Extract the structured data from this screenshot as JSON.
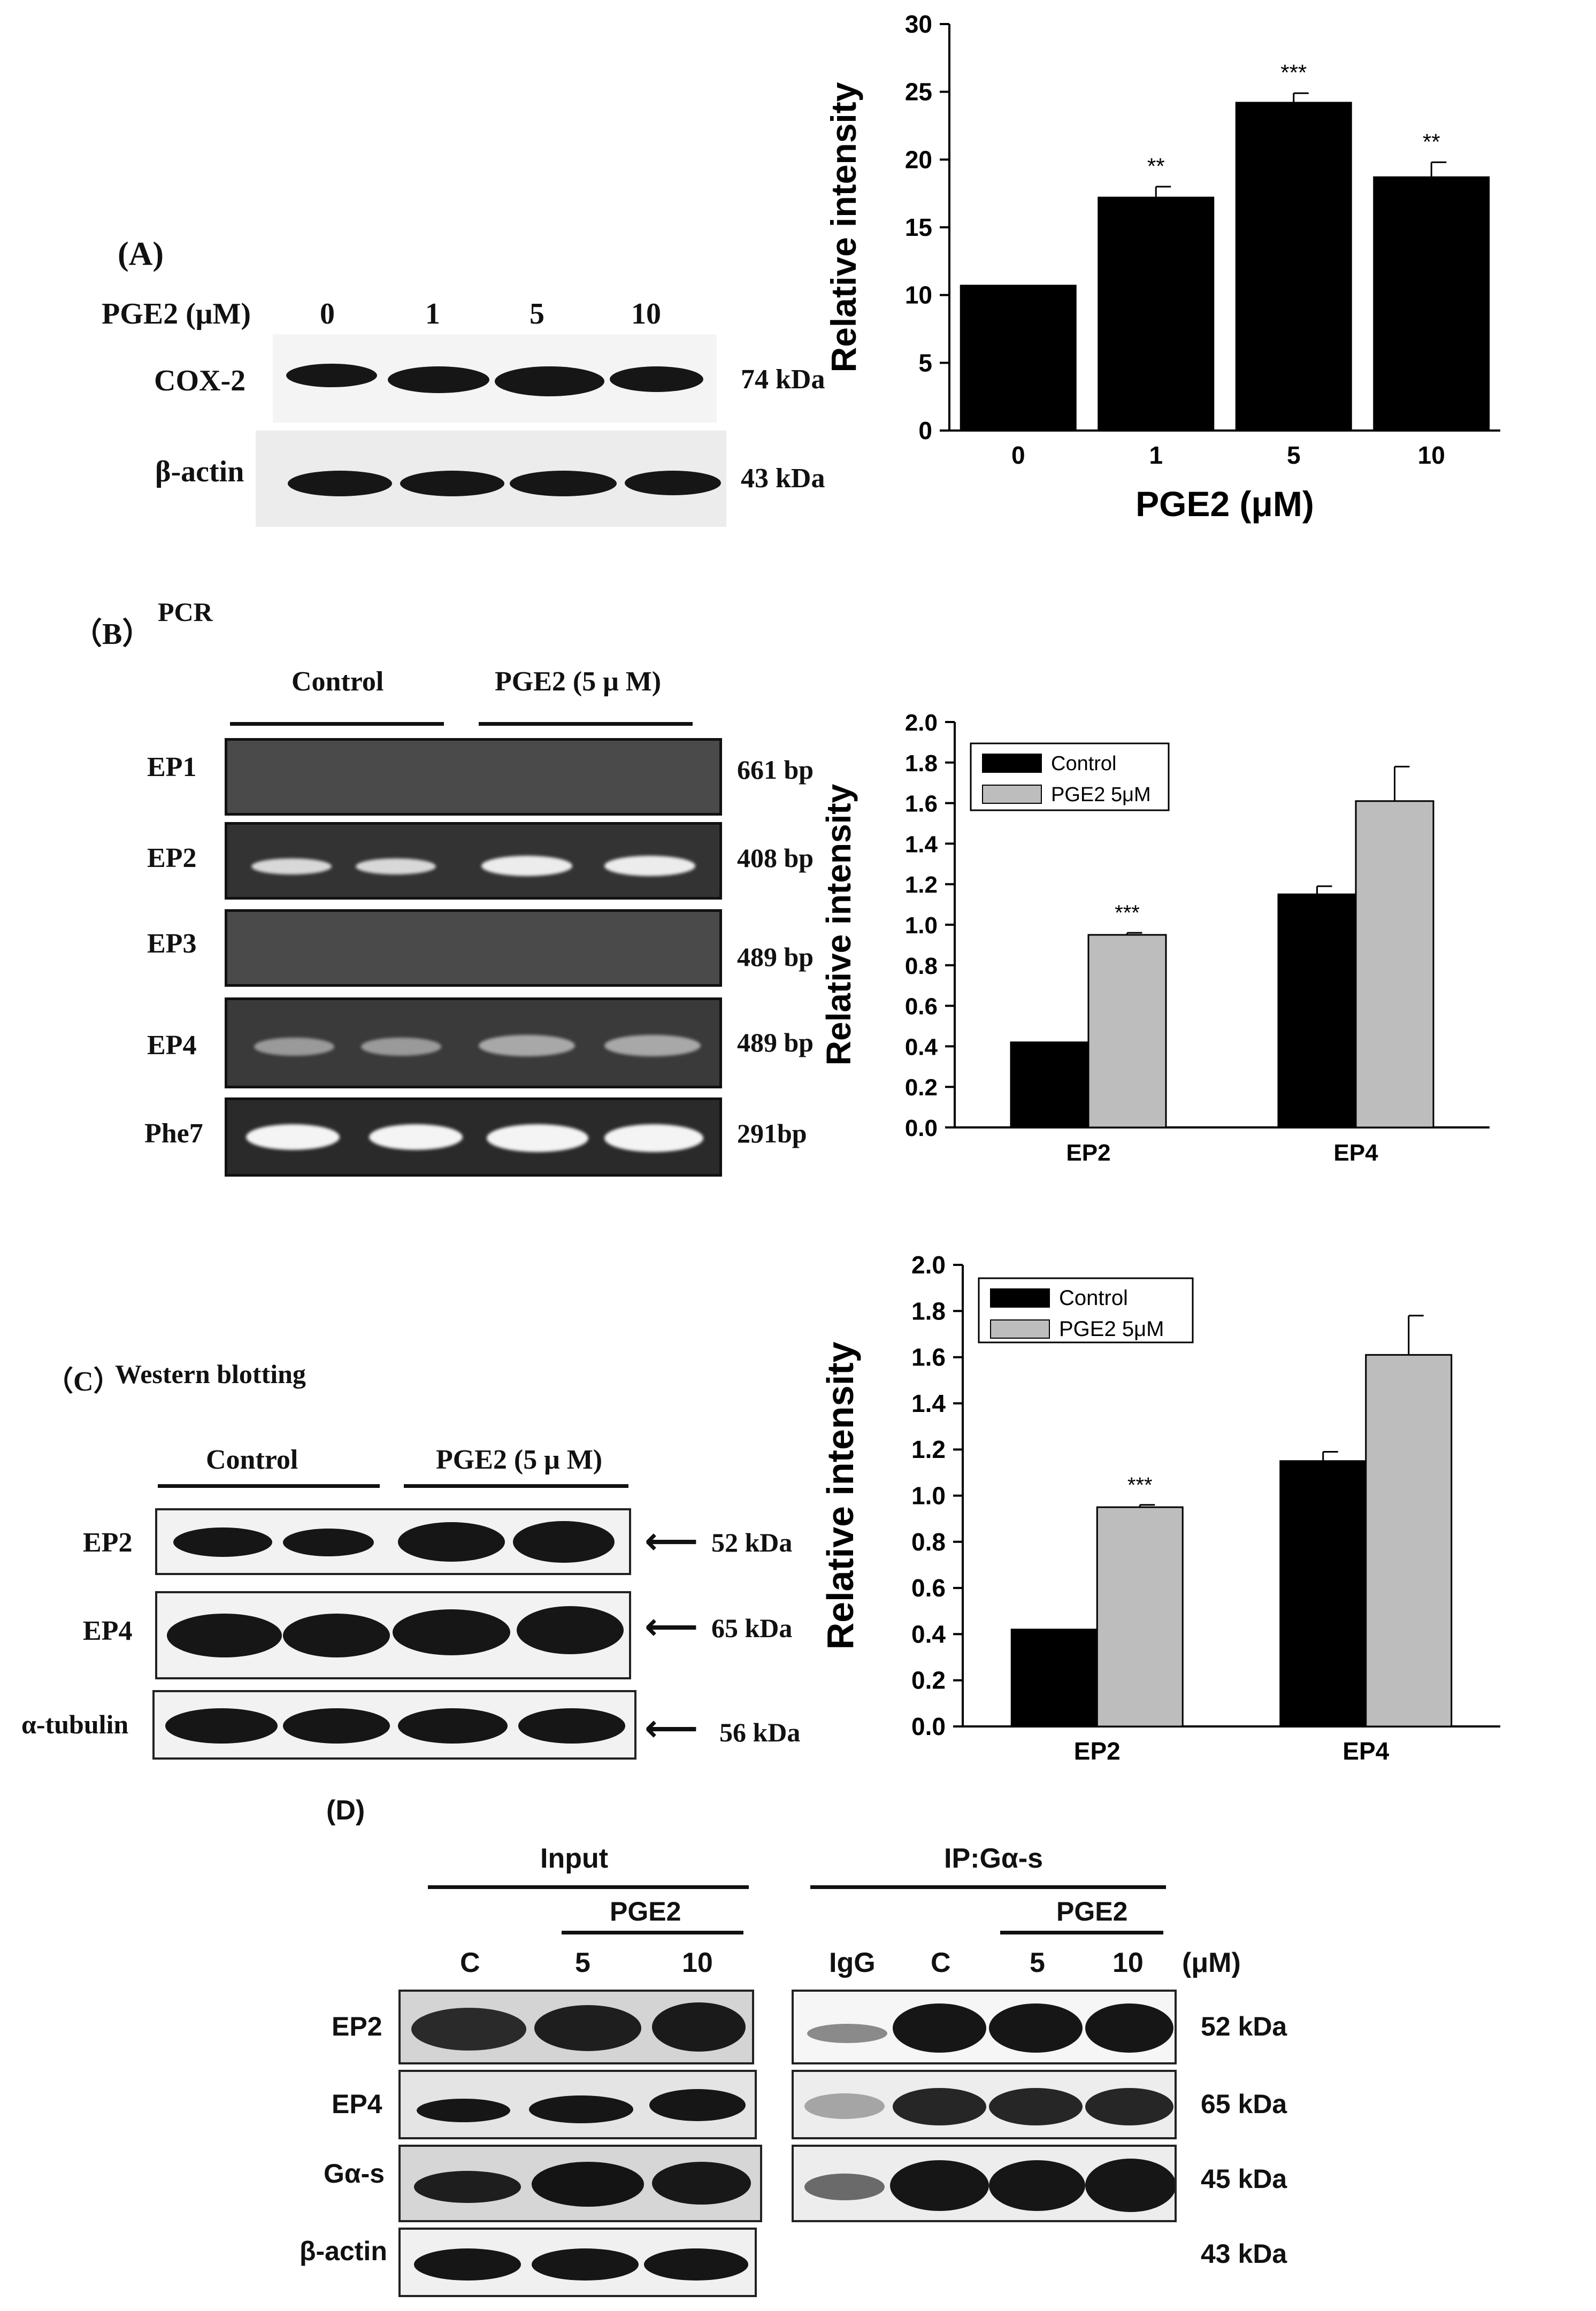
{
  "panel_a": {
    "label": "(A)",
    "row_header": "PGE2 (μM)",
    "lanes": [
      "0",
      "1",
      "5",
      "10"
    ],
    "rows": [
      {
        "name": "COX-2",
        "size": "74 kDa"
      },
      {
        "name": "β-actin",
        "size": "43 kDa"
      }
    ]
  },
  "panel_b": {
    "label": "（B）",
    "method": "PCR",
    "groups": [
      "Control",
      "PGE2 (5 μ M)"
    ],
    "rows": [
      {
        "name": "EP1",
        "size": "661 bp"
      },
      {
        "name": "EP2",
        "size": "408 bp"
      },
      {
        "name": "EP3",
        "size": "489 bp"
      },
      {
        "name": "EP4",
        "size": "489 bp"
      },
      {
        "name": "Phe7",
        "size": "291bp"
      }
    ]
  },
  "panel_c": {
    "label": "（C）",
    "method": "Western blotting",
    "groups": [
      "Control",
      "PGE2 (5 μ M)"
    ],
    "rows": [
      {
        "name": "EP2",
        "size": "52 kDa"
      },
      {
        "name": "EP4",
        "size": "65 kDa"
      },
      {
        "name": "α-tubulin",
        "size": "56 kDa"
      }
    ]
  },
  "panel_d": {
    "label": "(D)",
    "input_label": "Input",
    "ip_label": "IP:Gα-s",
    "pge2_label": "PGE2",
    "input_lanes": [
      "C",
      "5",
      "10"
    ],
    "ip_lanes": [
      "IgG",
      "C",
      "5",
      "10"
    ],
    "unit": "(μM)",
    "rows": [
      {
        "name": "EP2",
        "size": "52 kDa"
      },
      {
        "name": "EP4",
        "size": "65 kDa"
      },
      {
        "name": "Gα-s",
        "size": "45 kDa"
      },
      {
        "name": "β-actin",
        "size": "43 kDa"
      }
    ]
  },
  "chart_data": [
    {
      "type": "bar",
      "categories": [
        "0",
        "1",
        "5",
        "10"
      ],
      "values": [
        10.7,
        17.2,
        24.2,
        18.7
      ],
      "errors": [
        0,
        0.8,
        0.7,
        1.1
      ],
      "annotations": [
        "",
        "**",
        "***",
        "**"
      ],
      "xlabel": "PGE2 (μM)",
      "ylabel": "Relative intensity",
      "ylim": [
        0,
        30
      ],
      "yticks": [
        "0",
        "5",
        "10",
        "15",
        "20",
        "25",
        "30"
      ],
      "color": "#000000"
    },
    {
      "type": "bar",
      "categories": [
        "EP2",
        "EP4"
      ],
      "series": [
        {
          "name": "Control",
          "values": [
            0.42,
            1.15
          ],
          "errors": [
            0,
            0.04
          ],
          "color": "#000000"
        },
        {
          "name": "PGE2 5μM",
          "values": [
            0.95,
            1.61
          ],
          "errors": [
            0.01,
            0.17
          ],
          "color": "#bdbdbd"
        }
      ],
      "annotations": [
        {
          "category": "EP2",
          "series": "PGE2 5μM",
          "text": "***"
        }
      ],
      "ylabel": "Relative intensity",
      "ylim": [
        0,
        2.0
      ],
      "yticks": [
        "0.0",
        "0.2",
        "0.4",
        "0.6",
        "0.8",
        "1.0",
        "1.2",
        "1.4",
        "1.6",
        "1.8",
        "2.0"
      ],
      "legend": "top-left"
    },
    {
      "type": "bar",
      "categories": [
        "EP2",
        "EP4"
      ],
      "series": [
        {
          "name": "Control",
          "values": [
            0.42,
            1.15
          ],
          "errors": [
            0,
            0.04
          ],
          "color": "#000000"
        },
        {
          "name": "PGE2 5μM",
          "values": [
            0.95,
            1.61
          ],
          "errors": [
            0.01,
            0.17
          ],
          "color": "#bdbdbd"
        }
      ],
      "annotations": [
        {
          "category": "EP2",
          "series": "PGE2 5μM",
          "text": "***"
        }
      ],
      "ylabel": "Relative intensity",
      "ylim": [
        0,
        2.0
      ],
      "yticks": [
        "0.0",
        "0.2",
        "0.4",
        "0.6",
        "0.8",
        "1.0",
        "1.2",
        "1.4",
        "1.6",
        "1.8",
        "2.0"
      ],
      "legend": "top-left"
    }
  ]
}
